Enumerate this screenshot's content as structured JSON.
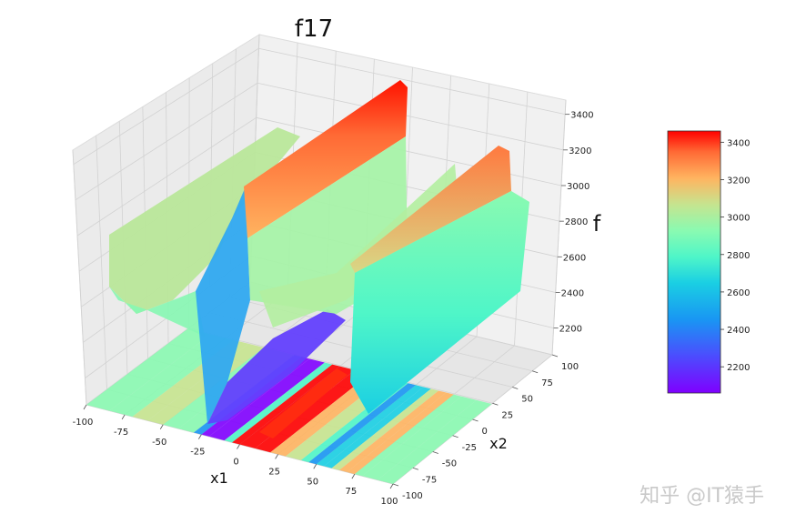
{
  "chart_data": {
    "type": "surface3d",
    "title": "f17",
    "xlabel": "x1",
    "ylabel": "x2",
    "zlabel": "f",
    "x_ticks": [
      -100,
      -75,
      -50,
      -25,
      0,
      25,
      50,
      75,
      100
    ],
    "y_ticks": [
      -100,
      -75,
      -50,
      -25,
      0,
      25,
      50,
      75,
      100
    ],
    "z_ticks": [
      2200,
      2400,
      2600,
      2800,
      3000,
      3200,
      3400
    ],
    "xlim": [
      -100,
      100
    ],
    "ylim": [
      -100,
      100
    ],
    "zlim": [
      2050,
      3480
    ],
    "colormap": "rainbow",
    "colorbar": {
      "ticks": [
        2200,
        2400,
        2600,
        2800,
        3000,
        3200,
        3400
      ],
      "range": [
        2060,
        3460
      ]
    },
    "surface_profile": {
      "x1": [
        -100,
        -85,
        -70,
        -60,
        -50,
        -40,
        -30,
        -25,
        -20,
        -10,
        -5,
        0,
        10,
        20,
        30,
        40,
        45,
        50,
        55,
        60,
        65,
        70,
        75,
        80,
        90,
        100
      ],
      "f": [
        2850,
        2900,
        2880,
        2950,
        2870,
        2920,
        2600,
        2150,
        2070,
        2100,
        3400,
        3450,
        3380,
        3300,
        2900,
        2950,
        2450,
        2500,
        2550,
        2600,
        3200,
        3150,
        2950,
        2800,
        2900,
        2850
      ]
    },
    "contour_floor": true,
    "grid": true
  },
  "watermark": "知乎 @IT猿手",
  "colors": {
    "pane": "#f2f2f2",
    "grid": "#d6d6d6"
  }
}
